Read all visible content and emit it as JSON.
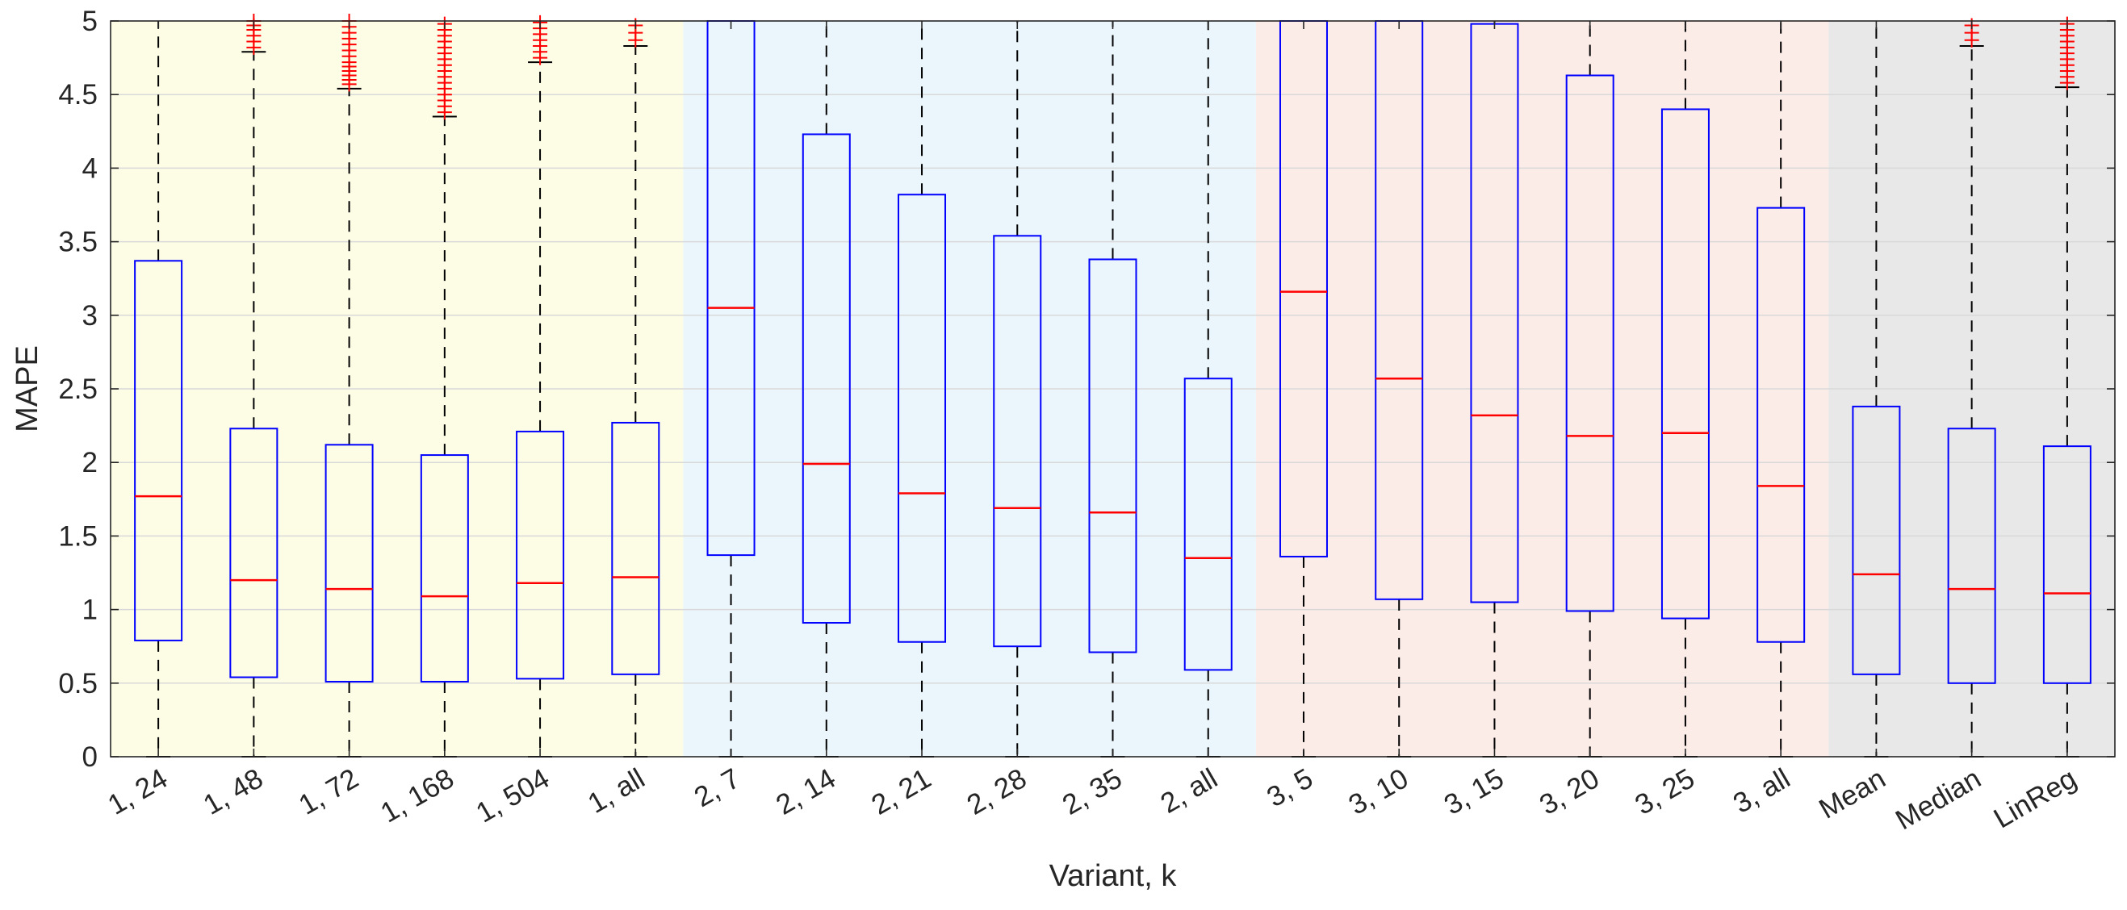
{
  "chart_data": {
    "type": "box",
    "xlabel": "Variant, k",
    "ylabel": "MAPE",
    "ylim": [
      0,
      5
    ],
    "yticks": [
      0,
      0.5,
      1,
      1.5,
      2,
      2.5,
      3,
      3.5,
      4,
      4.5,
      5
    ],
    "grid": "horizontal",
    "groups": [
      {
        "group": 1,
        "color": "#fdfde6",
        "categories": [
          "1, 24",
          "1, 48",
          "1, 72",
          "1, 168",
          "1, 504",
          "1, all"
        ]
      },
      {
        "group": 2,
        "color": "#eaf6fb",
        "categories": [
          "2, 7",
          "2, 14",
          "2, 21",
          "2, 28",
          "2, 35",
          "2, all"
        ]
      },
      {
        "group": 3,
        "color": "#fbece8",
        "categories": [
          "3, 5",
          "3, 10",
          "3, 15",
          "3, 20",
          "3, 25",
          "3, all"
        ]
      },
      {
        "group": 4,
        "color": "#e8e8e8",
        "categories": [
          "Mean",
          "Median",
          "LinReg"
        ]
      }
    ],
    "box_color": "#0000ff",
    "median_color": "#ff0000",
    "whisker_color": "#000000",
    "outlier_color": "#ff0000",
    "boxes": [
      {
        "label": "1, 24",
        "lower_whisker": 0,
        "q1": 0.79,
        "median": 1.77,
        "q3": 3.37,
        "upper_whisker": 5.0,
        "outliers": []
      },
      {
        "label": "1, 48",
        "lower_whisker": 0,
        "q1": 0.54,
        "median": 1.2,
        "q3": 2.23,
        "upper_whisker": 4.79,
        "outliers": [
          4.82,
          4.86,
          4.9,
          4.94,
          4.97,
          5.0
        ]
      },
      {
        "label": "1, 72",
        "lower_whisker": 0,
        "q1": 0.51,
        "median": 1.14,
        "q3": 2.12,
        "upper_whisker": 4.54,
        "outliers": [
          4.57,
          4.6,
          4.63,
          4.66,
          4.69,
          4.72,
          4.76,
          4.8,
          4.84,
          4.88,
          4.92,
          4.96,
          5.0
        ]
      },
      {
        "label": "1, 168",
        "lower_whisker": 0,
        "q1": 0.51,
        "median": 1.09,
        "q3": 2.05,
        "upper_whisker": 4.35,
        "outliers": [
          4.38,
          4.42,
          4.46,
          4.5,
          4.54,
          4.58,
          4.62,
          4.66,
          4.7,
          4.74,
          4.78,
          4.82,
          4.86,
          4.9,
          4.94,
          4.98
        ]
      },
      {
        "label": "1, 504",
        "lower_whisker": 0,
        "q1": 0.53,
        "median": 1.18,
        "q3": 2.21,
        "upper_whisker": 4.72,
        "outliers": [
          4.75,
          4.79,
          4.83,
          4.87,
          4.91,
          4.95,
          4.99
        ]
      },
      {
        "label": "1, all",
        "lower_whisker": 0,
        "q1": 0.56,
        "median": 1.22,
        "q3": 2.27,
        "upper_whisker": 4.83,
        "outliers": [
          4.87,
          4.92,
          4.97
        ]
      },
      {
        "label": "2, 7",
        "lower_whisker": 0,
        "q1": 1.37,
        "median": 3.05,
        "q3": 5.0,
        "upper_whisker": 5.0,
        "outliers": []
      },
      {
        "label": "2, 14",
        "lower_whisker": 0,
        "q1": 0.91,
        "median": 1.99,
        "q3": 4.23,
        "upper_whisker": 5.0,
        "outliers": []
      },
      {
        "label": "2, 21",
        "lower_whisker": 0,
        "q1": 0.78,
        "median": 1.79,
        "q3": 3.82,
        "upper_whisker": 5.0,
        "outliers": []
      },
      {
        "label": "2, 28",
        "lower_whisker": 0,
        "q1": 0.75,
        "median": 1.69,
        "q3": 3.54,
        "upper_whisker": 5.0,
        "outliers": []
      },
      {
        "label": "2, 35",
        "lower_whisker": 0,
        "q1": 0.71,
        "median": 1.66,
        "q3": 3.38,
        "upper_whisker": 5.0,
        "outliers": []
      },
      {
        "label": "2, all",
        "lower_whisker": 0,
        "q1": 0.59,
        "median": 1.35,
        "q3": 2.57,
        "upper_whisker": 5.0,
        "outliers": []
      },
      {
        "label": "3, 5",
        "lower_whisker": 0,
        "q1": 1.36,
        "median": 3.16,
        "q3": 5.0,
        "upper_whisker": 5.0,
        "outliers": []
      },
      {
        "label": "3, 10",
        "lower_whisker": 0,
        "q1": 1.07,
        "median": 2.57,
        "q3": 5.0,
        "upper_whisker": 5.0,
        "outliers": []
      },
      {
        "label": "3, 15",
        "lower_whisker": 0,
        "q1": 1.05,
        "median": 2.32,
        "q3": 4.98,
        "upper_whisker": 5.0,
        "outliers": []
      },
      {
        "label": "3, 20",
        "lower_whisker": 0,
        "q1": 0.99,
        "median": 2.18,
        "q3": 4.63,
        "upper_whisker": 5.0,
        "outliers": []
      },
      {
        "label": "3, 25",
        "lower_whisker": 0,
        "q1": 0.94,
        "median": 2.2,
        "q3": 4.4,
        "upper_whisker": 5.0,
        "outliers": []
      },
      {
        "label": "3, all",
        "lower_whisker": 0,
        "q1": 0.78,
        "median": 1.84,
        "q3": 3.73,
        "upper_whisker": 5.0,
        "outliers": []
      },
      {
        "label": "Mean",
        "lower_whisker": 0,
        "q1": 0.56,
        "median": 1.24,
        "q3": 2.38,
        "upper_whisker": 5.0,
        "outliers": []
      },
      {
        "label": "Median",
        "lower_whisker": 0,
        "q1": 0.5,
        "median": 1.14,
        "q3": 2.23,
        "upper_whisker": 4.83,
        "outliers": [
          4.87,
          4.92,
          4.97
        ]
      },
      {
        "label": "LinReg",
        "lower_whisker": 0,
        "q1": 0.5,
        "median": 1.11,
        "q3": 2.11,
        "upper_whisker": 4.55,
        "outliers": [
          4.58,
          4.62,
          4.66,
          4.7,
          4.74,
          4.78,
          4.82,
          4.86,
          4.9,
          4.94,
          4.98
        ]
      }
    ]
  }
}
